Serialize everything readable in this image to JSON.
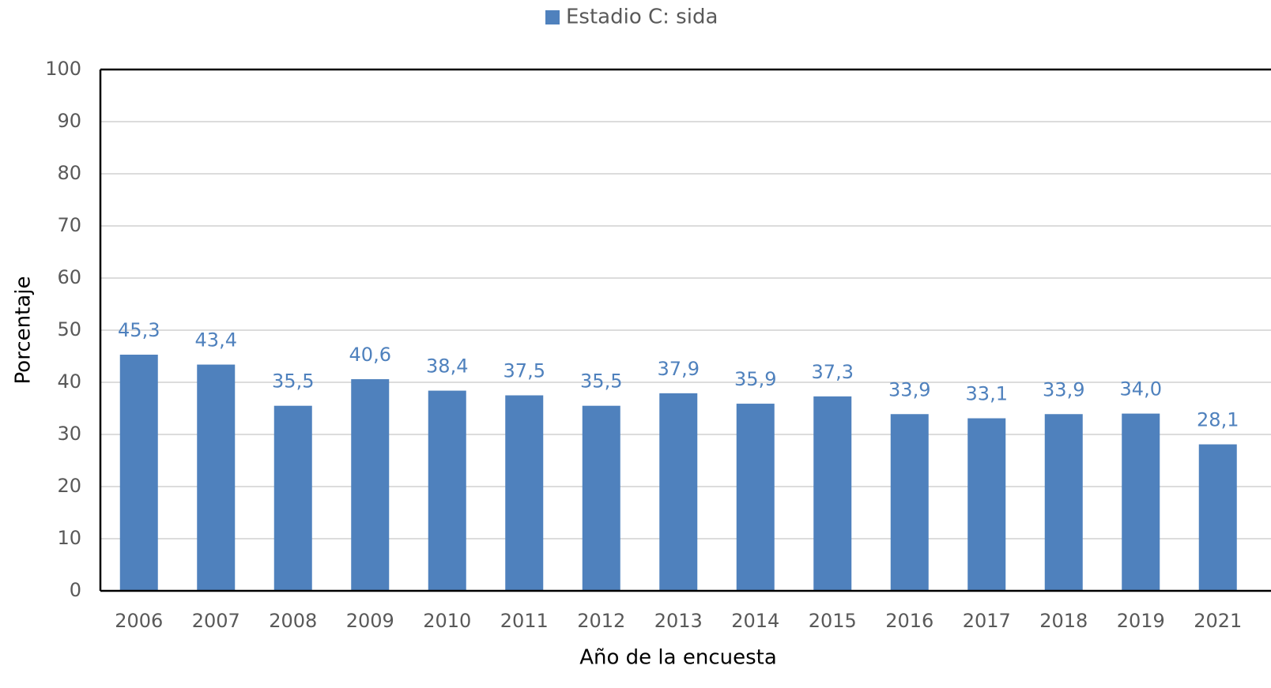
{
  "chart_data": {
    "type": "bar",
    "xlabel": "Año de la encuesta",
    "ylabel": "Porcentaje",
    "categories": [
      "2006",
      "2007",
      "2008",
      "2009",
      "2010",
      "2011",
      "2012",
      "2013",
      "2014",
      "2015",
      "2016",
      "2017",
      "2018",
      "2019",
      "2021"
    ],
    "series": [
      {
        "name": "Estadio C: sida",
        "color": "#4f81bd",
        "values": [
          45.3,
          43.4,
          35.5,
          40.6,
          38.4,
          37.5,
          35.5,
          37.9,
          35.9,
          37.3,
          33.9,
          33.1,
          33.9,
          34.0,
          28.1
        ],
        "value_labels": [
          "45,3",
          "43,4",
          "35,5",
          "40,6",
          "38,4",
          "37,5",
          "35,5",
          "37,9",
          "35,9",
          "37,3",
          "33,9",
          "33,1",
          "33,9",
          "34,0",
          "28,1"
        ]
      }
    ],
    "ylim": [
      0,
      100
    ],
    "yticks": [
      0,
      10,
      20,
      30,
      40,
      50,
      60,
      70,
      80,
      90,
      100
    ],
    "grid": true,
    "legend": "top"
  }
}
